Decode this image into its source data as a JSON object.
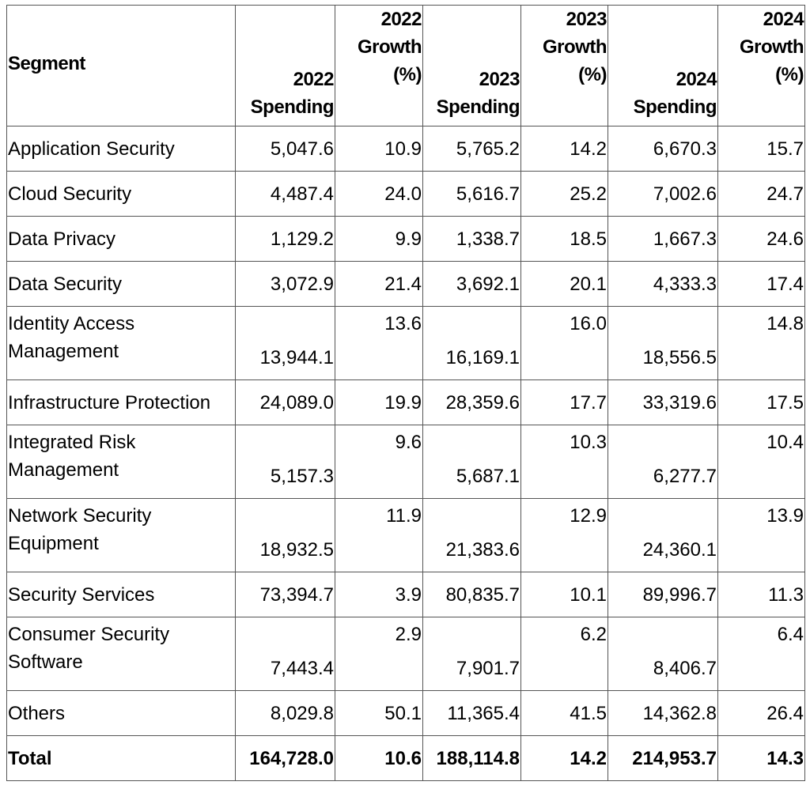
{
  "table": {
    "header": [
      [
        "Segment"
      ],
      [
        "2022",
        "Spending"
      ],
      [
        "2022",
        "Growth",
        "(%)"
      ],
      [
        "2023",
        "Spending"
      ],
      [
        "2023",
        "Growth",
        "(%)"
      ],
      [
        "2024",
        "Spending"
      ],
      [
        "2024",
        "Growth",
        "(%)"
      ]
    ],
    "rows": [
      [
        "Application Security",
        "5,047.6",
        "10.9",
        "5,765.2",
        "14.2",
        "6,670.3",
        "15.7"
      ],
      [
        "Cloud Security",
        "4,487.4",
        "24.0",
        "5,616.7",
        "25.2",
        "7,002.6",
        "24.7"
      ],
      [
        "Data Privacy",
        "1,129.2",
        "9.9",
        "1,338.7",
        "18.5",
        "1,667.3",
        "24.6"
      ],
      [
        "Data Security",
        "3,072.9",
        "21.4",
        "3,692.1",
        "20.1",
        "4,333.3",
        "17.4"
      ],
      [
        "Identity Access Management",
        "13,944.1",
        "13.6",
        "16,169.1",
        "16.0",
        "18,556.5",
        "14.8"
      ],
      [
        "Infrastructure Protection",
        "24,089.0",
        "19.9",
        "28,359.6",
        "17.7",
        "33,319.6",
        "17.5"
      ],
      [
        "Integrated Risk Management",
        "5,157.3",
        "9.6",
        "5,687.1",
        "10.3",
        "6,277.7",
        "10.4"
      ],
      [
        "Network Security Equipment",
        "18,932.5",
        "11.9",
        "21,383.6",
        "12.9",
        "24,360.1",
        "13.9"
      ],
      [
        "Security Services",
        "73,394.7",
        "3.9",
        "80,835.7",
        "10.1",
        "89,996.7",
        "11.3"
      ],
      [
        "Consumer Security Software",
        "7,443.4",
        "2.9",
        "7,901.7",
        "6.2",
        "8,406.7",
        "6.4"
      ],
      [
        "Others",
        "8,029.8",
        "50.1",
        "11,365.4",
        "41.5",
        "14,362.8",
        "26.4"
      ]
    ],
    "total": [
      "Total",
      "164,728.0",
      "10.6",
      "188,114.8",
      "14.2",
      "214,953.7",
      "14.3"
    ]
  }
}
